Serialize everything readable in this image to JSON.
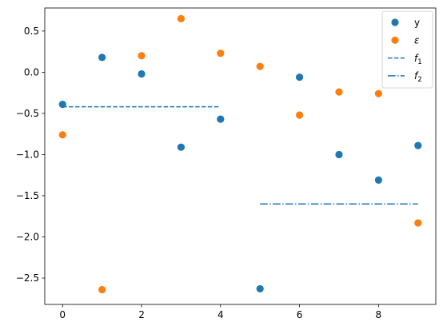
{
  "chart_data": {
    "type": "scatter",
    "xlim": [
      -0.45,
      9.45
    ],
    "ylim": [
      -2.82,
      0.78
    ],
    "x_ticks": [
      0,
      2,
      4,
      6,
      8
    ],
    "x_tick_labels": [
      "0",
      "2",
      "4",
      "6",
      "8"
    ],
    "y_ticks": [
      0.5,
      0.0,
      -0.5,
      -1.0,
      -1.5,
      -2.0,
      -2.5
    ],
    "y_tick_labels": [
      "0.5",
      "0.0",
      "−0.5",
      "−1.0",
      "−1.5",
      "−2.0",
      "−2.5"
    ],
    "grid": false,
    "legend_position": "top-right",
    "series": [
      {
        "name": "y",
        "kind": "scatter",
        "color": "#1f77b4",
        "x": [
          0,
          1,
          2,
          3,
          4,
          5,
          6,
          7,
          8,
          9
        ],
        "y": [
          -0.39,
          0.18,
          -0.02,
          -0.91,
          -0.57,
          -2.63,
          -0.06,
          -1.0,
          -1.31,
          -0.89
        ]
      },
      {
        "name": "ε",
        "kind": "scatter",
        "color": "#ff7f0e",
        "x": [
          0,
          1,
          2,
          3,
          4,
          5,
          6,
          7,
          8,
          9
        ],
        "y": [
          -0.76,
          -2.64,
          0.2,
          0.65,
          0.23,
          0.07,
          -0.52,
          -0.24,
          -0.26,
          -1.83
        ]
      },
      {
        "name": "f",
        "subscript": "1",
        "kind": "line",
        "dash": "dashed",
        "color": "#1f77b4",
        "x": [
          0,
          4
        ],
        "y": [
          -0.42,
          -0.42
        ]
      },
      {
        "name": "f",
        "subscript": "2",
        "kind": "line",
        "dash": "dashdot",
        "color": "#1f77b4",
        "x": [
          5,
          9
        ],
        "y": [
          -1.6,
          -1.6
        ]
      }
    ]
  }
}
